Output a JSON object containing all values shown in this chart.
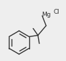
{
  "bg_color": "#eeeeee",
  "line_color": "#303030",
  "text_color": "#303030",
  "lw": 1.0,
  "figsize": [
    0.97,
    0.89
  ],
  "dpi": 100,
  "mg_label": "Mg",
  "cl_label": "Cl",
  "mg_fontsize": 6.5,
  "cl_fontsize": 6.5
}
